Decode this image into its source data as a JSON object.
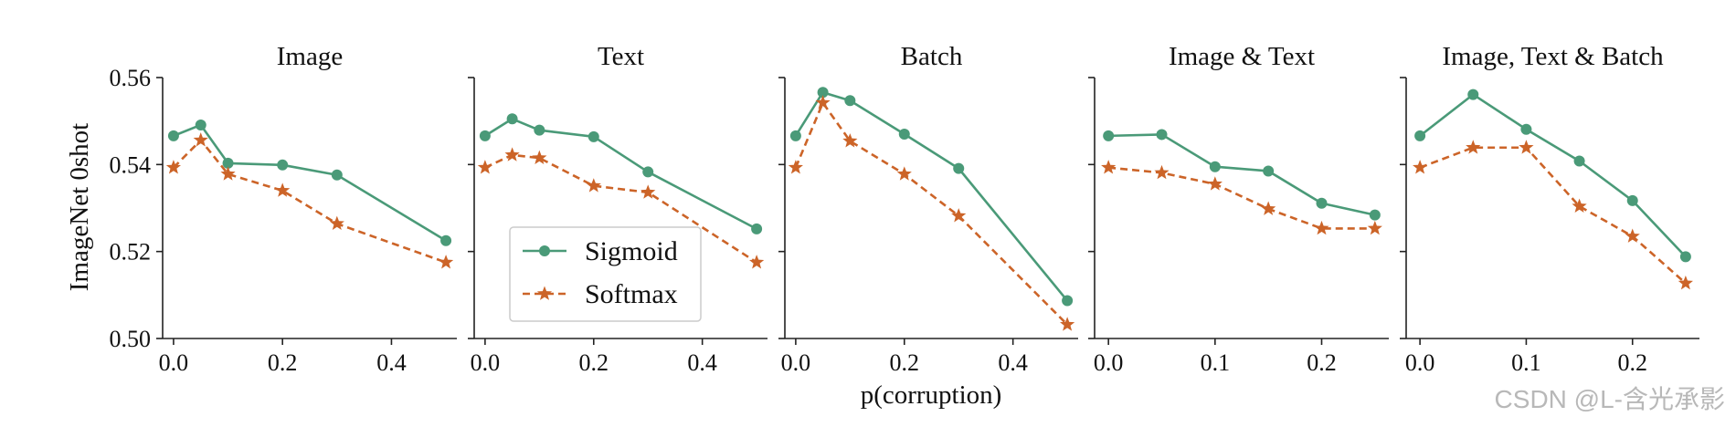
{
  "chart_data": {
    "type": "line",
    "shared_ylabel": "ImageNet 0shot",
    "shared_xlabel": "p(corruption)",
    "ylim": [
      0.5,
      0.56
    ],
    "yticks": [
      "0.50",
      "0.52",
      "0.54",
      "0.56"
    ],
    "legend": {
      "placement": "panel-2 lower-left",
      "entries": [
        {
          "name": "Sigmoid",
          "color": "#4a9a78",
          "marker": "circle",
          "style": "solid"
        },
        {
          "name": "Softmax",
          "color": "#cc6428",
          "marker": "star",
          "style": "dashed"
        }
      ]
    },
    "panels": [
      {
        "title": "Image",
        "xlim": [
          -0.02,
          0.52
        ],
        "xticks": [
          0.0,
          0.2,
          0.4
        ],
        "xtick_labels": [
          "0.0",
          "0.2",
          "0.4"
        ],
        "show_ytick_labels": true,
        "series": [
          {
            "name": "Sigmoid",
            "x": [
              0.0,
              0.05,
              0.1,
              0.2,
              0.3,
              0.5
            ],
            "y": [
              0.5466,
              0.5491,
              0.5403,
              0.5399,
              0.5376,
              0.5225
            ]
          },
          {
            "name": "Softmax",
            "x": [
              0.0,
              0.05,
              0.1,
              0.2,
              0.3,
              0.5
            ],
            "y": [
              0.5393,
              0.5456,
              0.5378,
              0.534,
              0.5264,
              0.5175
            ]
          }
        ]
      },
      {
        "title": "Text",
        "xlim": [
          -0.02,
          0.52
        ],
        "xticks": [
          0.0,
          0.2,
          0.4
        ],
        "xtick_labels": [
          "0.0",
          "0.2",
          "0.4"
        ],
        "show_ytick_labels": false,
        "series": [
          {
            "name": "Sigmoid",
            "x": [
              0.0,
              0.05,
              0.1,
              0.2,
              0.3,
              0.5
            ],
            "y": [
              0.5466,
              0.5505,
              0.5479,
              0.5464,
              0.5383,
              0.5252
            ]
          },
          {
            "name": "Softmax",
            "x": [
              0.0,
              0.05,
              0.1,
              0.2,
              0.3,
              0.5
            ],
            "y": [
              0.5393,
              0.5422,
              0.5415,
              0.5351,
              0.5336,
              0.5175
            ]
          }
        ]
      },
      {
        "title": "Batch",
        "xlim": [
          -0.02,
          0.52
        ],
        "xticks": [
          0.0,
          0.2,
          0.4
        ],
        "xtick_labels": [
          "0.0",
          "0.2",
          "0.4"
        ],
        "show_ytick_labels": false,
        "series": [
          {
            "name": "Sigmoid",
            "x": [
              0.0,
              0.05,
              0.1,
              0.2,
              0.3,
              0.5
            ],
            "y": [
              0.5466,
              0.5566,
              0.5547,
              0.547,
              0.5391,
              0.5087
            ]
          },
          {
            "name": "Softmax",
            "x": [
              0.0,
              0.05,
              0.1,
              0.2,
              0.3,
              0.5
            ],
            "y": [
              0.5393,
              0.5542,
              0.5454,
              0.5378,
              0.5282,
              0.5032
            ]
          }
        ]
      },
      {
        "title": "Image & Text",
        "xlim": [
          -0.013,
          0.263
        ],
        "xticks": [
          0.0,
          0.1,
          0.2
        ],
        "xtick_labels": [
          "0.0",
          "0.1",
          "0.2"
        ],
        "show_ytick_labels": false,
        "series": [
          {
            "name": "Sigmoid",
            "x": [
              0.0,
              0.05,
              0.1,
              0.15,
              0.2,
              0.25
            ],
            "y": [
              0.5466,
              0.5469,
              0.5395,
              0.5385,
              0.5311,
              0.5284
            ]
          },
          {
            "name": "Softmax",
            "x": [
              0.0,
              0.05,
              0.1,
              0.15,
              0.2,
              0.25
            ],
            "y": [
              0.5393,
              0.5381,
              0.5355,
              0.5298,
              0.5253,
              0.5253
            ]
          }
        ]
      },
      {
        "title": "Image, Text & Batch",
        "xlim": [
          -0.013,
          0.263
        ],
        "xticks": [
          0.0,
          0.1,
          0.2
        ],
        "xtick_labels": [
          "0.0",
          "0.1",
          "0.2"
        ],
        "show_ytick_labels": false,
        "series": [
          {
            "name": "Sigmoid",
            "x": [
              0.0,
              0.05,
              0.1,
              0.15,
              0.2,
              0.25
            ],
            "y": [
              0.5466,
              0.5561,
              0.5481,
              0.5408,
              0.5317,
              0.5188
            ]
          },
          {
            "name": "Softmax",
            "x": [
              0.0,
              0.05,
              0.1,
              0.15,
              0.2,
              0.25
            ],
            "y": [
              0.5393,
              0.5439,
              0.5439,
              0.5304,
              0.5235,
              0.5127
            ]
          }
        ]
      }
    ]
  },
  "watermark": "CSDN @L-含光承影"
}
